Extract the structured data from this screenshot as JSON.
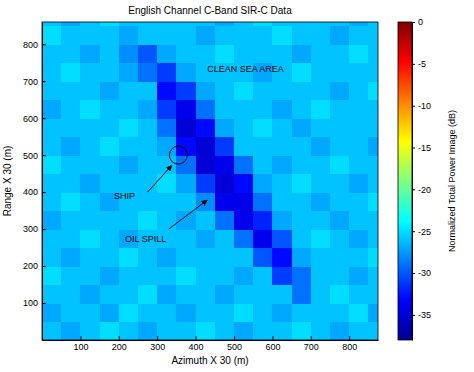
{
  "chart_data": {
    "type": "heatmap",
    "title": "English Channel C-Band SIR-C Data",
    "x_label": "Azimuth X 30 (m)",
    "y_label": "Range X 30 (m)",
    "xlim": [
      0,
      875
    ],
    "ylim": [
      0,
      860
    ],
    "xticks": [
      100,
      200,
      300,
      400,
      500,
      600,
      700,
      800
    ],
    "yticks": [
      100,
      200,
      300,
      400,
      500,
      600,
      700,
      800
    ],
    "x": [
      25,
      75,
      125,
      175,
      225,
      275,
      325,
      375,
      425,
      475,
      525,
      575,
      625,
      675,
      725,
      775,
      825,
      875
    ],
    "y": [
      25,
      75,
      125,
      175,
      225,
      275,
      325,
      375,
      425,
      475,
      525,
      575,
      625,
      675,
      725,
      775,
      825,
      875
    ],
    "z": [
      [
        -26,
        -27,
        -26,
        -25,
        -26,
        -27,
        -26,
        -26,
        -25,
        -26,
        -27,
        -26,
        -26,
        -25,
        -26,
        -27,
        -26,
        -26
      ],
      [
        -27,
        -26,
        -26,
        -27,
        -25,
        -26,
        -26,
        -27,
        -26,
        -26,
        -25,
        -26,
        -27,
        -26,
        -26,
        -26,
        -25,
        -27
      ],
      [
        -26,
        -26,
        -27,
        -26,
        -26,
        -25,
        -27,
        -26,
        -26,
        -27,
        -26,
        -26,
        -26,
        -29,
        -26,
        -25,
        -26,
        -26
      ],
      [
        -25,
        -26,
        -26,
        -27,
        -26,
        -26,
        -26,
        -25,
        -26,
        -26,
        -27,
        -26,
        -31,
        -29,
        -26,
        -26,
        -27,
        -26
      ],
      [
        -26,
        -27,
        -26,
        -26,
        -25,
        -26,
        -27,
        -26,
        -26,
        -26,
        -26,
        -30,
        -33,
        -27,
        -26,
        -26,
        -26,
        -25
      ],
      [
        -26,
        -26,
        -25,
        -26,
        -27,
        -26,
        -26,
        -26,
        -27,
        -26,
        -29,
        -34,
        -30,
        -26,
        -25,
        -26,
        -27,
        -26
      ],
      [
        -27,
        -26,
        -26,
        -26,
        -26,
        -25,
        -26,
        -27,
        -26,
        -29,
        -34,
        -32,
        -27,
        -26,
        -26,
        -27,
        -26,
        -26
      ],
      [
        -26,
        -25,
        -26,
        -27,
        -26,
        -26,
        -26,
        -26,
        -28,
        -34,
        -34,
        -29,
        -26,
        -26,
        -27,
        -26,
        -26,
        -25
      ],
      [
        -26,
        -26,
        -27,
        -26,
        -26,
        -26,
        -25,
        -27,
        -31,
        -35,
        -33,
        -27,
        -26,
        -25,
        -26,
        -26,
        -27,
        -26
      ],
      [
        -25,
        -26,
        -26,
        -26,
        -27,
        -26,
        -26,
        -29,
        -35,
        -34,
        -29,
        -26,
        -27,
        -26,
        -26,
        -25,
        -26,
        -26
      ],
      [
        -26,
        -27,
        -26,
        -25,
        -26,
        -26,
        -27,
        -33,
        -35,
        -31,
        -26,
        -26,
        -26,
        -26,
        -27,
        -26,
        -26,
        -27
      ],
      [
        -26,
        -26,
        -26,
        -26,
        -25,
        -26,
        -29,
        -35,
        -33,
        -27,
        -26,
        -25,
        -26,
        -27,
        -26,
        -26,
        -26,
        -26
      ],
      [
        -27,
        -26,
        -25,
        -26,
        -26,
        -27,
        -31,
        -34,
        -29,
        -26,
        -26,
        -26,
        -27,
        -26,
        -25,
        -26,
        -26,
        -26
      ],
      [
        -26,
        -26,
        -26,
        -27,
        -26,
        -26,
        -33,
        -31,
        -27,
        -26,
        -25,
        -26,
        -26,
        -26,
        -26,
        -27,
        -26,
        -25
      ],
      [
        -26,
        -25,
        -26,
        -26,
        -27,
        -29,
        -31,
        -27,
        -26,
        -26,
        -26,
        -27,
        -26,
        -25,
        -26,
        -26,
        -26,
        -26
      ],
      [
        -26,
        -26,
        -27,
        -26,
        -28,
        -30,
        -27,
        -26,
        -26,
        -25,
        -26,
        -26,
        -26,
        -27,
        -26,
        -26,
        -25,
        -26
      ],
      [
        -25,
        -26,
        -26,
        -26,
        -27,
        -26,
        -26,
        -26,
        -27,
        -26,
        -26,
        -26,
        -25,
        -26,
        -26,
        -27,
        -26,
        -26
      ],
      [
        -26,
        -27,
        -26,
        -25,
        -26,
        -26,
        -26,
        -26,
        -26,
        -27,
        -26,
        -25,
        -26,
        -26,
        -26,
        -26,
        -27,
        -26
      ]
    ],
    "colorbar_label": "Normalized Total Power Image (dB)",
    "clim": [
      -38,
      0
    ],
    "cticks": [
      0,
      -5,
      -10,
      -15,
      -20,
      -25,
      -30,
      -35
    ],
    "annotations": [
      "CLEAN SEA AREA",
      "SHIP",
      "OIL SPILL"
    ]
  }
}
